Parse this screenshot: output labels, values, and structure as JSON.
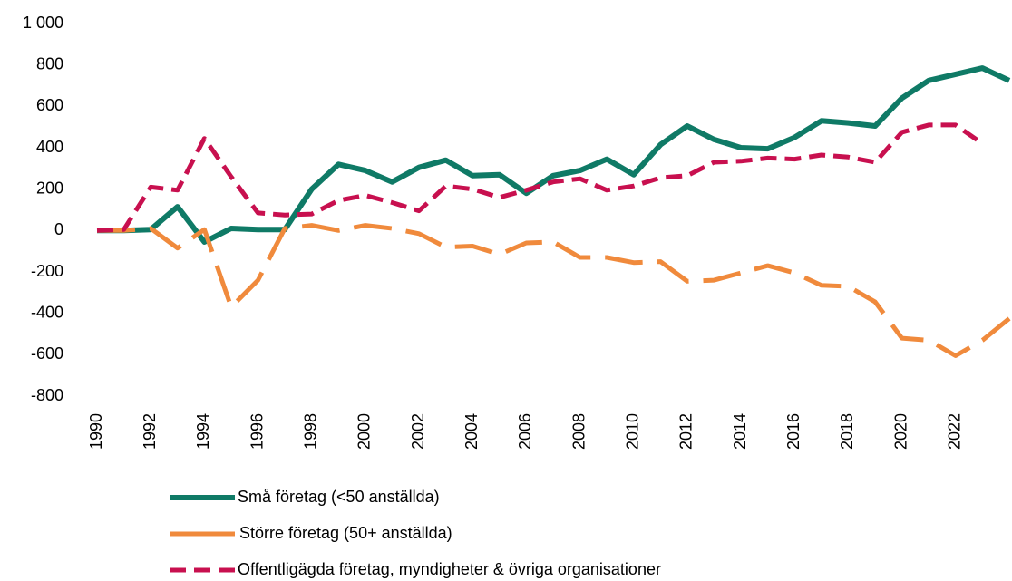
{
  "chart_data": {
    "type": "line",
    "x": [
      1990,
      1991,
      1992,
      1993,
      1994,
      1995,
      1996,
      1997,
      1998,
      1999,
      2000,
      2001,
      2002,
      2003,
      2004,
      2005,
      2006,
      2007,
      2008,
      2009,
      2010,
      2011,
      2012,
      2013,
      2014,
      2015,
      2016,
      2017,
      2018,
      2019,
      2020,
      2021,
      2022,
      2023,
      2024
    ],
    "xlim": [
      1990,
      2024
    ],
    "xticks": [
      1990,
      1992,
      1994,
      1996,
      1998,
      2000,
      2002,
      2004,
      2006,
      2008,
      2010,
      2012,
      2014,
      2016,
      2018,
      2020,
      2022
    ],
    "ylim": [
      -800,
      1000
    ],
    "yticks": [
      -800,
      -600,
      -400,
      -200,
      0,
      200,
      400,
      600,
      800,
      {
        "value": 1000,
        "label": "1 000"
      }
    ],
    "grid": false,
    "legend": "bottom",
    "series": [
      {
        "name": "Små företag (<50 anställda)",
        "color": "#0f7a66",
        "style": "solid",
        "values": [
          0,
          0,
          5,
          115,
          -55,
          10,
          5,
          5,
          200,
          320,
          290,
          235,
          305,
          340,
          265,
          270,
          180,
          265,
          290,
          345,
          270,
          415,
          505,
          440,
          400,
          395,
          450,
          530,
          520,
          505,
          640,
          725,
          755,
          785,
          725
        ]
      },
      {
        "name": "Större företag (50+ anställda)",
        "color": "#f08a3c",
        "style": "long-dash",
        "values": [
          0,
          0,
          10,
          -85,
          5,
          -370,
          -240,
          10,
          25,
          0,
          25,
          10,
          -15,
          -80,
          -75,
          -115,
          -60,
          -55,
          -130,
          -130,
          -155,
          -150,
          -245,
          -240,
          -205,
          -170,
          -205,
          -265,
          -270,
          -345,
          -520,
          -530,
          -605,
          -530,
          -425
        ]
      },
      {
        "name": "Offentligägda företag, myndigheter & övriga organisationer",
        "color": "#c8104f",
        "style": "dash",
        "values": [
          0,
          5,
          210,
          195,
          445,
          260,
          85,
          75,
          80,
          145,
          170,
          135,
          95,
          215,
          200,
          160,
          195,
          235,
          250,
          195,
          215,
          255,
          265,
          330,
          335,
          350,
          345,
          365,
          355,
          330,
          475,
          510,
          510,
          420,
          null
        ]
      }
    ]
  }
}
